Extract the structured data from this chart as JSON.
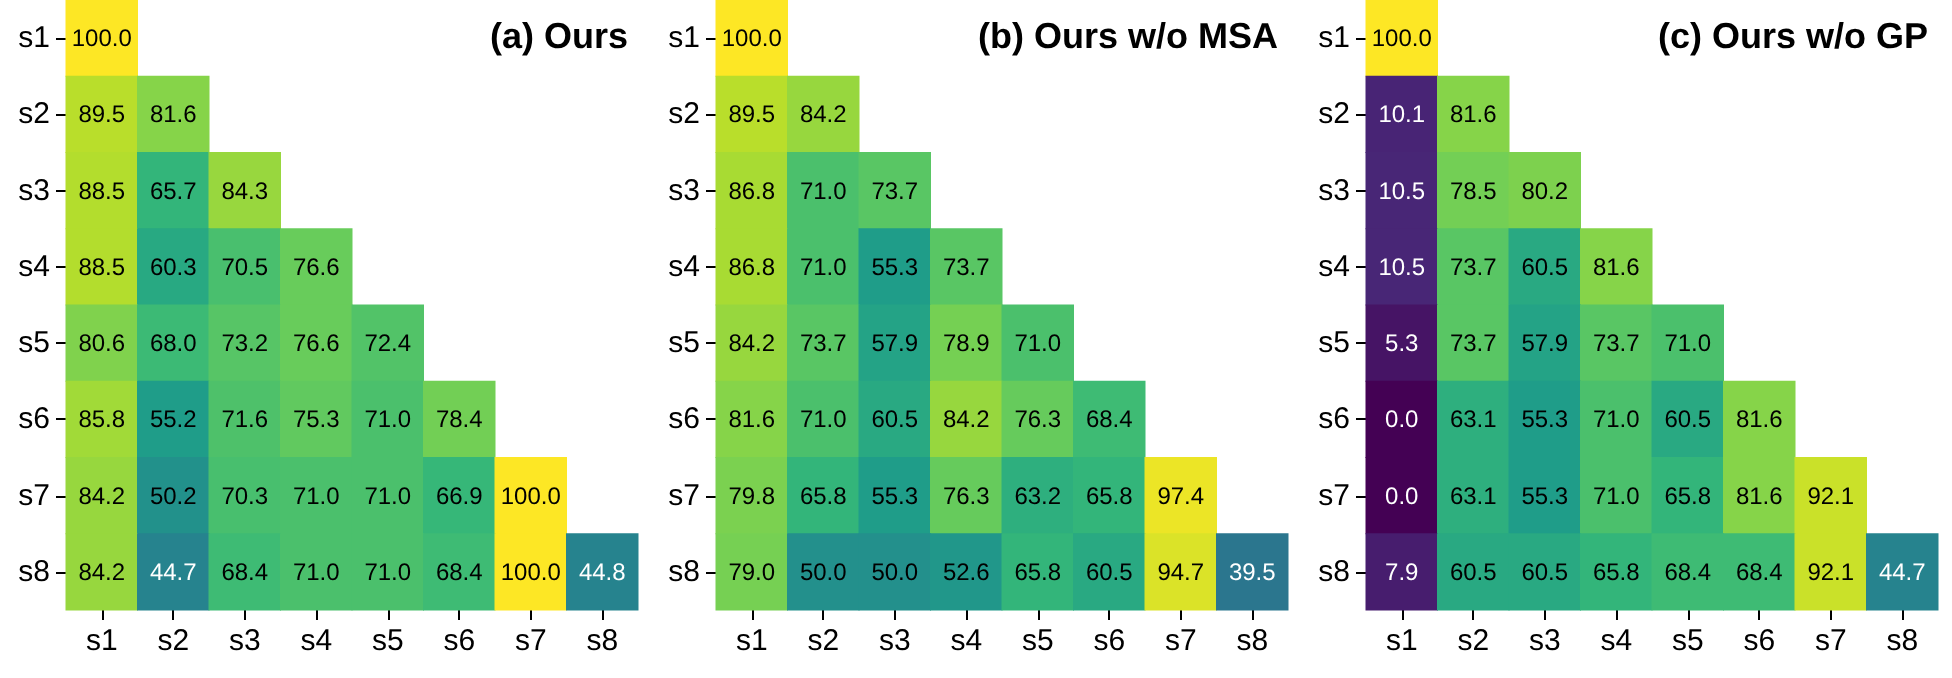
{
  "chart_data": [
    {
      "type": "heatmap",
      "title": "(a) Ours",
      "categories": [
        "s1",
        "s2",
        "s3",
        "s4",
        "s5",
        "s6",
        "s7",
        "s8"
      ],
      "y_categories": [
        "s1",
        "s2",
        "s3",
        "s4",
        "s5",
        "s6",
        "s7",
        "s8"
      ],
      "data_labels": true,
      "cells": [
        [
          100.0,
          null,
          null,
          null,
          null,
          null,
          null,
          null
        ],
        [
          89.5,
          81.6,
          null,
          null,
          null,
          null,
          null,
          null
        ],
        [
          88.5,
          65.7,
          84.3,
          null,
          null,
          null,
          null,
          null
        ],
        [
          88.5,
          60.3,
          70.5,
          76.6,
          null,
          null,
          null,
          null
        ],
        [
          80.6,
          68.0,
          73.2,
          76.6,
          72.4,
          null,
          null,
          null
        ],
        [
          85.8,
          55.2,
          71.6,
          75.3,
          71.0,
          78.4,
          null,
          null
        ],
        [
          84.2,
          50.2,
          70.3,
          71.0,
          71.0,
          66.9,
          100.0,
          null
        ],
        [
          84.2,
          44.7,
          68.4,
          71.0,
          71.0,
          68.4,
          100.0,
          44.8
        ]
      ],
      "cell_labels": [
        [
          "100.0",
          null,
          null,
          null,
          null,
          null,
          null,
          null
        ],
        [
          "89.5",
          "81.6",
          null,
          null,
          null,
          null,
          null,
          null
        ],
        [
          "88.5",
          "65.7",
          "84.3",
          null,
          null,
          null,
          null,
          null
        ],
        [
          "88.5",
          "60.3",
          "70.5",
          "76.6",
          null,
          null,
          null,
          null
        ],
        [
          "80.6",
          "68.0",
          "73.2",
          "76.6",
          "72.4",
          null,
          null,
          null
        ],
        [
          "85.8",
          "55.2",
          "71.6",
          "75.3",
          "71.0",
          "78.4",
          null,
          null
        ],
        [
          "84.2",
          "50.2",
          "70.3",
          "71.0",
          "71.0",
          "66.9",
          "100.0",
          null
        ],
        [
          "84.2",
          "44.7",
          "68.4",
          "71.0",
          "71.0",
          "68.4",
          "100.0",
          "44.8"
        ]
      ]
    },
    {
      "type": "heatmap",
      "title": "(b) Ours w/o MSA",
      "categories": [
        "s1",
        "s2",
        "s3",
        "s4",
        "s5",
        "s6",
        "s7",
        "s8"
      ],
      "y_categories": [
        "s1",
        "s2",
        "s3",
        "s4",
        "s5",
        "s6",
        "s7",
        "s8"
      ],
      "data_labels": true,
      "cells": [
        [
          100.0,
          null,
          null,
          null,
          null,
          null,
          null,
          null
        ],
        [
          89.5,
          84.2,
          null,
          null,
          null,
          null,
          null,
          null
        ],
        [
          86.8,
          71.0,
          73.7,
          null,
          null,
          null,
          null,
          null
        ],
        [
          86.8,
          71.0,
          55.3,
          73.7,
          null,
          null,
          null,
          null
        ],
        [
          84.2,
          73.7,
          57.9,
          78.9,
          71.0,
          null,
          null,
          null
        ],
        [
          81.6,
          71.0,
          60.5,
          84.2,
          76.3,
          68.4,
          null,
          null
        ],
        [
          79.8,
          65.8,
          55.3,
          76.3,
          63.2,
          65.8,
          97.4,
          null
        ],
        [
          79.0,
          50.0,
          50.0,
          52.6,
          65.8,
          60.5,
          94.7,
          39.5
        ]
      ],
      "cell_labels": [
        [
          "100.0",
          null,
          null,
          null,
          null,
          null,
          null,
          null
        ],
        [
          "89.5",
          "84.2",
          null,
          null,
          null,
          null,
          null,
          null
        ],
        [
          "86.8",
          "71.0",
          "73.7",
          null,
          null,
          null,
          null,
          null
        ],
        [
          "86.8",
          "71.0",
          "55.3",
          "73.7",
          null,
          null,
          null,
          null
        ],
        [
          "84.2",
          "73.7",
          "57.9",
          "78.9",
          "71.0",
          null,
          null,
          null
        ],
        [
          "81.6",
          "71.0",
          "60.5",
          "84.2",
          "76.3",
          "68.4",
          null,
          null
        ],
        [
          "79.8",
          "65.8",
          "55.3",
          "76.3",
          "63.2",
          "65.8",
          "97.4",
          null
        ],
        [
          "79.0",
          "50.0",
          "50.0",
          "52.6",
          "65.8",
          "60.5",
          "94.7",
          "39.5"
        ]
      ]
    },
    {
      "type": "heatmap",
      "title": "(c) Ours w/o GP",
      "categories": [
        "s1",
        "s2",
        "s3",
        "s4",
        "s5",
        "s6",
        "s7",
        "s8"
      ],
      "y_categories": [
        "s1",
        "s2",
        "s3",
        "s4",
        "s5",
        "s6",
        "s7",
        "s8"
      ],
      "data_labels": true,
      "cells": [
        [
          100.0,
          null,
          null,
          null,
          null,
          null,
          null,
          null
        ],
        [
          10.1,
          81.6,
          null,
          null,
          null,
          null,
          null,
          null
        ],
        [
          10.5,
          78.5,
          80.2,
          null,
          null,
          null,
          null,
          null
        ],
        [
          10.5,
          73.7,
          60.5,
          81.6,
          null,
          null,
          null,
          null
        ],
        [
          5.3,
          73.7,
          57.9,
          73.7,
          71.0,
          null,
          null,
          null
        ],
        [
          0.0,
          63.1,
          55.3,
          71.0,
          60.5,
          81.6,
          null,
          null
        ],
        [
          0.0,
          63.1,
          55.3,
          71.0,
          65.8,
          81.6,
          92.1,
          null
        ],
        [
          7.9,
          60.5,
          60.5,
          65.8,
          68.4,
          68.4,
          92.1,
          44.7
        ]
      ],
      "cell_labels": [
        [
          "100.0",
          null,
          null,
          null,
          null,
          null,
          null,
          null
        ],
        [
          "10.1",
          "81.6",
          null,
          null,
          null,
          null,
          null,
          null
        ],
        [
          "10.5",
          "78.5",
          "80.2",
          null,
          null,
          null,
          null,
          null
        ],
        [
          "10.5",
          "73.7",
          "60.5",
          "81.6",
          null,
          null,
          null,
          null
        ],
        [
          "5.3",
          "73.7",
          "57.9",
          "73.7",
          "71.0",
          null,
          null,
          null
        ],
        [
          "0.0",
          "63.1",
          "55.3",
          "71.0",
          "60.5",
          "81.6",
          null,
          null
        ],
        [
          "0.0",
          "63.1",
          "55.3",
          "71.0",
          "65.8",
          "81.6",
          "92.1",
          null
        ],
        [
          "7.9",
          "60.5",
          "60.5",
          "65.8",
          "68.4",
          "68.4",
          "92.1",
          "44.7"
        ]
      ]
    }
  ]
}
